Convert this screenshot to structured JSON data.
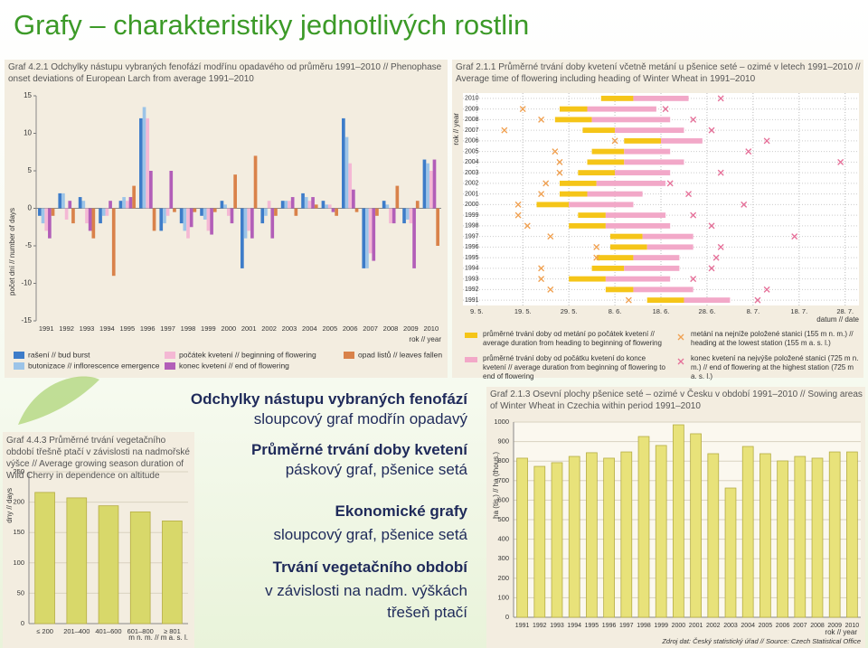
{
  "title": "Grafy – charakteristiky jednotlivých rostlin",
  "text_blocks": [
    {
      "heading": "Odchylky nástupu vybraných fenofází",
      "lines": [
        "sloupcový graf modřín opadavý"
      ]
    },
    {
      "heading": "Průměrné trvání doby kvetení",
      "lines": [
        "páskový graf, pšenice setá"
      ]
    },
    {
      "heading": "Ekonomické grafy",
      "lines": [
        "sloupcový graf, pšenice setá"
      ]
    },
    {
      "heading": "Trvání vegetačního období",
      "lines": [
        "v závislosti na nadm. výškách",
        "třešeň ptačí"
      ]
    }
  ],
  "chart_data": [
    {
      "type": "bar",
      "title": "Graf 4.2.1  Odchylky nástupu vybraných fenofází modřínu opadavého od průměru 1991–2010 // Phenophase onset deviations of European Larch from average 1991–2010",
      "y_label": "počet dní // number of days",
      "x_label": "rok // year",
      "categories": [
        "1991",
        "1992",
        "1993",
        "1994",
        "1995",
        "1996",
        "1997",
        "1998",
        "1999",
        "2000",
        "2001",
        "2002",
        "2003",
        "2004",
        "2005",
        "2006",
        "2007",
        "2008",
        "2009",
        "2010"
      ],
      "series": [
        {
          "name": "rašení // bud burst",
          "color": "#3d7cc9",
          "values": [
            -1,
            2,
            1.5,
            -2,
            1,
            12,
            -3,
            -2,
            -1,
            1,
            -8,
            -2,
            1,
            2,
            1,
            12,
            -8,
            1,
            -2,
            6.5
          ]
        },
        {
          "name": "butonizace // inflorescence emergence",
          "color": "#9cc4e8",
          "values": [
            -2,
            2,
            1,
            -1,
            1.5,
            13.5,
            -2,
            -3,
            -1.5,
            0.5,
            -4,
            -1,
            1,
            1.5,
            0.5,
            9.5,
            -8,
            0.5,
            -1.5,
            6
          ]
        },
        {
          "name": "počátek kvetení // beginning of flowering",
          "color": "#f4b8d4",
          "values": [
            -3,
            -1.5,
            -2,
            -1,
            1,
            12,
            -1,
            -4,
            -3,
            -1,
            -3,
            1,
            1,
            1,
            0.5,
            6,
            -6,
            -2,
            -2,
            5
          ]
        },
        {
          "name": "konec kvetení // end of flowering",
          "color": "#b25eb8",
          "values": [
            -4,
            1,
            -3,
            1,
            1.5,
            5,
            5,
            -2.5,
            -3.5,
            -2,
            -4,
            -4,
            1.5,
            1.5,
            -0.5,
            2.5,
            -7,
            -2,
            -8,
            6.5
          ]
        },
        {
          "name": "opad listů // leaves fallen",
          "color": "#d9824a",
          "values": [
            -1,
            -2,
            -4,
            -9,
            3,
            -3,
            -0.5,
            -0.5,
            -0.5,
            4.5,
            7,
            -1,
            -1,
            0.5,
            -1,
            -0.5,
            -1,
            3,
            1,
            -5
          ]
        }
      ],
      "ylim": [
        -15,
        15
      ],
      "yticks": [
        -15,
        -10,
        -5,
        0,
        5,
        10,
        15
      ],
      "grid": false
    },
    {
      "type": "range_bar",
      "title": "Graf 2.1.1  Průměrné trvání doby kvetení včetně metání u pšenice seté – ozimé v letech 1991–2010 // Average time of flowering including heading of Winter Wheat in 1991–2010",
      "y_label": "rok // year",
      "x_label": "datum // date",
      "categories": [
        "2010",
        "2009",
        "2008",
        "2007",
        "2006",
        "2005",
        "2004",
        "2003",
        "2002",
        "2001",
        "2000",
        "1999",
        "1998",
        "1997",
        "1996",
        "1995",
        "1994",
        "1993",
        "1992",
        "1991"
      ],
      "series": [
        {
          "name": "průměrné trvání doby od metání po počátek kvetení // average duration from heading to beginning of flowering",
          "color": "#f5c518",
          "start": [
            156,
            147,
            146,
            152,
            161,
            154,
            153,
            151,
            147,
            147,
            142,
            151,
            149,
            158,
            158,
            155,
            154,
            149,
            157,
            166
          ],
          "end": [
            163,
            153,
            154,
            159,
            169,
            161,
            161,
            159,
            155,
            153,
            149,
            157,
            157,
            165,
            166,
            163,
            161,
            157,
            163,
            174
          ]
        },
        {
          "name": "průměrné trvání doby od počátku kvetení do konce kvetení // average duration from beginning of flowering to end of flowering",
          "color": "#f2a8c8",
          "start": [
            163,
            153,
            154,
            159,
            169,
            161,
            161,
            159,
            155,
            153,
            149,
            157,
            157,
            165,
            166,
            163,
            161,
            157,
            163,
            174
          ],
          "end": [
            175,
            168,
            171,
            174,
            178,
            171,
            174,
            171,
            170,
            165,
            163,
            170,
            171,
            176,
            176,
            173,
            173,
            171,
            176,
            184
          ]
        }
      ],
      "markers": [
        {
          "name": "metání na nejníže položené stanici (155 m n. m.) // heading at the lowest station (155 m a. s. l.)",
          "color": "#f0a050",
          "values": [
            null,
            139,
            143,
            135,
            159,
            146,
            147,
            147,
            144,
            143,
            138,
            138,
            140,
            145,
            155,
            155,
            143,
            143,
            145,
            162
          ]
        },
        {
          "name": "konec kvetení na nejvýše položené stanici (725 m n. m.) // end of flowering at the highest station (725 m a. s. l.)",
          "color": "#e56f98",
          "values": [
            182,
            170,
            176,
            180,
            192,
            188,
            208,
            182,
            171,
            175,
            187,
            176,
            180,
            198,
            182,
            181,
            180,
            176,
            192,
            190
          ]
        }
      ],
      "xlim": [
        126,
        212
      ],
      "xticks": [
        {
          "value": 129,
          "label": "9. 5."
        },
        {
          "value": 139,
          "label": "19. 5."
        },
        {
          "value": 149,
          "label": "29. 5."
        },
        {
          "value": 159,
          "label": "8. 6."
        },
        {
          "value": 169,
          "label": "18. 6."
        },
        {
          "value": 179,
          "label": "28. 6."
        },
        {
          "value": 189,
          "label": "8. 7."
        },
        {
          "value": 199,
          "label": "18. 7."
        },
        {
          "value": 209,
          "label": "28. 7."
        }
      ],
      "grid": true
    },
    {
      "type": "bar",
      "title": "Graf 2.1.3  Osevní plochy pšenice seté – ozimé v Česku v období 1991–2010 // Sowing areas of Winter Wheat in Czechia within period 1991–2010",
      "y_label": "ha (tis.) // ha (thous.)",
      "x_label": "rok // year",
      "source": "Zdroj dat: Český statistický úřad // Source: Czech Statistical Office",
      "categories": [
        "1991",
        "1992",
        "1993",
        "1994",
        "1995",
        "1996",
        "1997",
        "1998",
        "1999",
        "2000",
        "2001",
        "2002",
        "2003",
        "2004",
        "2005",
        "2006",
        "2007",
        "2008",
        "2009",
        "2010"
      ],
      "values": [
        815,
        773,
        792,
        824,
        843,
        815,
        847,
        926,
        880,
        986,
        940,
        838,
        662,
        875,
        838,
        801,
        824,
        815,
        847,
        847
      ],
      "color": "#e8e27a",
      "ylim": [
        0,
        1000
      ],
      "yticks": [
        0,
        100,
        200,
        300,
        400,
        500,
        600,
        700,
        800,
        900,
        1000
      ],
      "grid": true
    },
    {
      "type": "bar",
      "title": "Graf 4.4.3  Průměrné trvání vegetačního období třešně ptačí v závislosti na nadmořské výšce // Average growing season duration of Wild Cherry in dependence on altitude",
      "y_label": "dny // days",
      "x_label": "m n. m. // m a. s. l.",
      "categories": [
        "≤ 200",
        "201–400",
        "401–600",
        "601–800",
        "≥ 801"
      ],
      "values": [
        216,
        207,
        194,
        184,
        169
      ],
      "color": "#d8d86a",
      "ylim": [
        0,
        250
      ],
      "yticks": [
        0,
        50,
        100,
        150,
        200,
        250
      ],
      "grid": true
    }
  ]
}
